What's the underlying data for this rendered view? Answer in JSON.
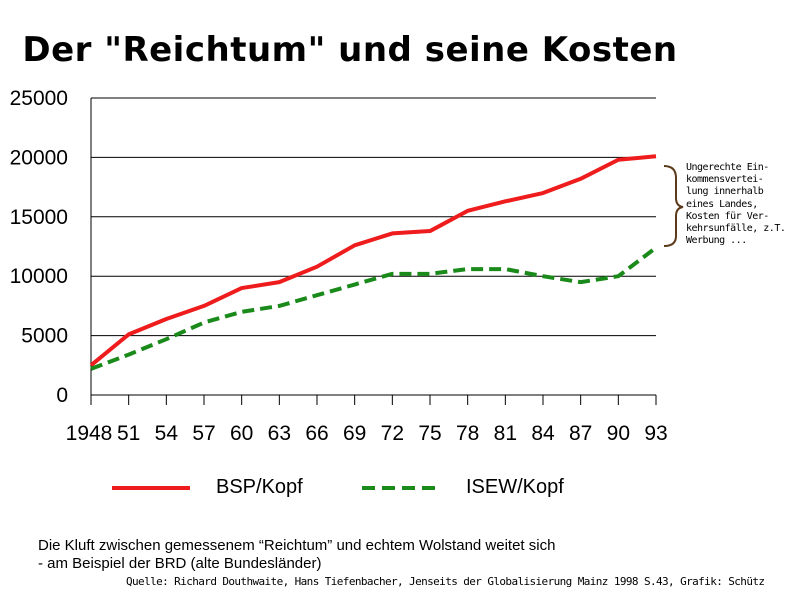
{
  "title": "Der \"Reichtum\" und seine Kosten",
  "annotation": {
    "lines": [
      "Ungerechte Ein-",
      "kommensvertei-",
      "lung innerhalb",
      "eines Landes,",
      "Kosten für Ver-",
      "kehrsunfälle, z.T.",
      "Werbung ..."
    ]
  },
  "caption": {
    "line1": "Die Kluft zwischen gemessenem “Reichtum” und echtem Wolstand weitet sich",
    "line2": "- am Beispiel der BRD (alte Bundesländer)"
  },
  "source": "Quelle: Richard Douthwaite, Hans Tiefenbacher, Jenseits der Globalisierung Mainz 1998 S.43, Grafik: Schütz",
  "colors": {
    "bsp": "#ee1c1c",
    "isew": "#1a8a1a",
    "grid": "#000000"
  },
  "chart_data": {
    "type": "line",
    "title": "Der \"Reichtum\" und seine Kosten",
    "xlabel": "",
    "ylabel": "",
    "categories": [
      "1948",
      "51",
      "54",
      "57",
      "60",
      "63",
      "66",
      "69",
      "72",
      "75",
      "78",
      "81",
      "84",
      "87",
      "90",
      "93"
    ],
    "ylim": [
      0,
      25000
    ],
    "yticks": [
      "0",
      "5000",
      "10000",
      "15000",
      "20000",
      "25000"
    ],
    "grid": "horizontal",
    "legend_position": "bottom",
    "series": [
      {
        "name": "BSP/Kopf",
        "style": "solid",
        "values": [
          2500,
          5100,
          6400,
          7500,
          9000,
          9500,
          10800,
          12600,
          13600,
          13800,
          15500,
          16300,
          17000,
          18200,
          19800,
          20100
        ]
      },
      {
        "name": "ISEW/Kopf",
        "style": "dashed",
        "values": [
          2200,
          3400,
          4700,
          6100,
          7000,
          7500,
          8400,
          9300,
          10200,
          10200,
          10600,
          10600,
          10000,
          9500,
          10000,
          12400
        ]
      }
    ]
  }
}
